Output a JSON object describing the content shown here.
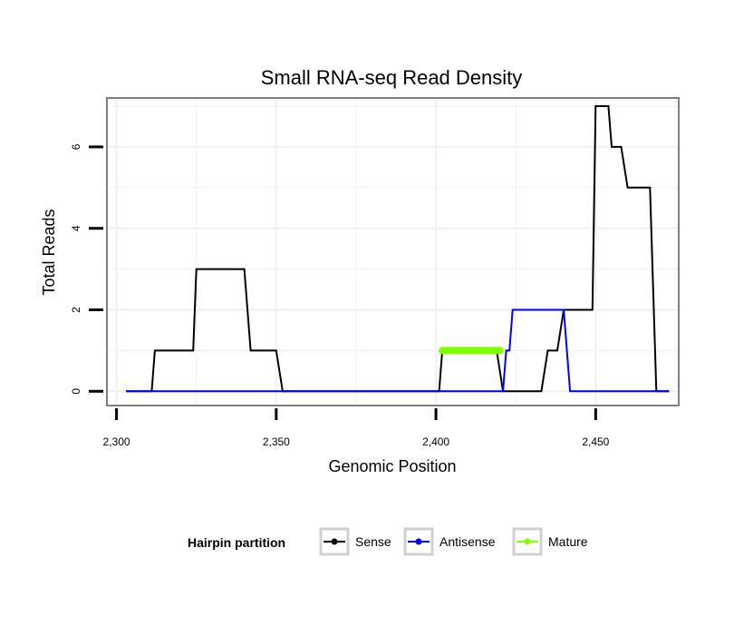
{
  "chart_data": {
    "type": "line",
    "title": "Small RNA-seq Read Density",
    "xlabel": "Genomic Position",
    "ylabel": "Total Reads",
    "xlim": [
      2297,
      2476
    ],
    "ylim": [
      -0.35,
      7.2
    ],
    "x_ticks": [
      2300,
      2350,
      2400,
      2450
    ],
    "x_tick_labels": [
      "2,300",
      "2,350",
      "2,400",
      "2,450"
    ],
    "y_ticks": [
      0,
      2,
      4,
      6
    ],
    "y_tick_labels": [
      "0",
      "2",
      "4",
      "6"
    ],
    "grid": true,
    "legend": {
      "title": "Hairpin partition",
      "position": "bottom",
      "entries": [
        {
          "label": "Sense",
          "color": "#000000"
        },
        {
          "label": "Antisense",
          "color": "#0000ff"
        },
        {
          "label": "Mature",
          "color": "#7fff00"
        }
      ]
    },
    "series": [
      {
        "name": "Sense",
        "color": "#000000",
        "x": [
          2303,
          2311,
          2312,
          2324,
          2325,
          2340,
          2342,
          2350,
          2352,
          2401,
          2402,
          2419,
          2421,
          2433,
          2435,
          2438,
          2440,
          2449,
          2450,
          2454,
          2455,
          2458,
          2460,
          2465,
          2467,
          2469,
          2473
        ],
        "y": [
          0,
          0,
          1,
          1,
          3,
          3,
          1,
          1,
          0,
          0,
          1,
          1,
          0,
          0,
          1,
          1,
          2,
          2,
          7,
          7,
          6,
          6,
          5,
          5,
          5,
          0,
          0
        ]
      },
      {
        "name": "Antisense",
        "color": "#0000ff",
        "x": [
          2303,
          2421,
          2422,
          2423,
          2424,
          2438,
          2439,
          2440,
          2442,
          2473
        ],
        "y": [
          0,
          0,
          1,
          1,
          2,
          2,
          2,
          2,
          0,
          0
        ]
      },
      {
        "name": "Mature",
        "color": "#7fff00",
        "x": [
          2402,
          2420
        ],
        "y": [
          1,
          1
        ]
      }
    ]
  }
}
